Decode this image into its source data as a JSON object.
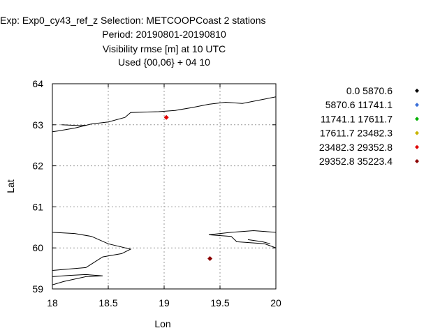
{
  "chart_data": {
    "type": "scatter",
    "title_lines": [
      "Exp: Exp0_cy43_ref_z   Selection: METCOOPCoast       2 stations",
      "Period: 20190801-20190810",
      "Visibility rmse [m] at  10 UTC",
      "Used {00,06} + 04 10"
    ],
    "xlabel": "Lon",
    "ylabel": "Lat",
    "xlim": [
      18,
      20
    ],
    "ylim": [
      59,
      64
    ],
    "x_ticks": [
      18,
      18.5,
      19,
      19.5,
      20
    ],
    "x_tick_labels": [
      "18",
      "18.5",
      "19",
      "19.5",
      "20"
    ],
    "y_ticks": [
      59,
      60,
      61,
      62,
      63,
      64
    ],
    "y_tick_labels": [
      "59",
      "60",
      "61",
      "62",
      "63",
      "64"
    ],
    "grid": true,
    "legend_position": "right",
    "legend": [
      {
        "label": "0.0 5870.6",
        "color": "#000000"
      },
      {
        "label": "5870.6 11741.1",
        "color": "#3a6fd8"
      },
      {
        "label": "11741.1 17611.7",
        "color": "#00b000"
      },
      {
        "label": "17611.7 23482.3",
        "color": "#c8b400"
      },
      {
        "label": "23482.3 29352.8",
        "color": "#e00000"
      },
      {
        "label": "29352.8 35223.4",
        "color": "#8b0000"
      }
    ],
    "points": [
      {
        "lon": 19.02,
        "lat": 63.18,
        "class": 4
      },
      {
        "lon": 19.41,
        "lat": 59.74,
        "class": 5
      }
    ],
    "coastlines": [
      [
        [
          18.0,
          62.83
        ],
        [
          18.05,
          62.85
        ],
        [
          18.2,
          62.92
        ],
        [
          18.35,
          63.02
        ],
        [
          18.5,
          63.07
        ],
        [
          18.65,
          63.18
        ],
        [
          18.7,
          63.3
        ],
        [
          18.95,
          63.32
        ],
        [
          19.1,
          63.35
        ],
        [
          19.25,
          63.42
        ],
        [
          19.4,
          63.5
        ],
        [
          19.55,
          63.55
        ],
        [
          19.7,
          63.52
        ],
        [
          19.85,
          63.6
        ],
        [
          20.0,
          63.68
        ]
      ],
      [
        [
          18.08,
          63.0
        ],
        [
          18.25,
          62.98
        ],
        [
          18.3,
          62.99
        ]
      ],
      [
        [
          18.0,
          60.38
        ],
        [
          18.2,
          60.35
        ],
        [
          18.35,
          60.28
        ],
        [
          18.5,
          60.1
        ],
        [
          18.7,
          59.97
        ],
        [
          18.62,
          59.86
        ],
        [
          18.45,
          59.78
        ],
        [
          18.3,
          59.52
        ],
        [
          18.0,
          59.45
        ]
      ],
      [
        [
          18.0,
          59.1
        ],
        [
          18.1,
          59.18
        ],
        [
          18.3,
          59.3
        ],
        [
          18.45,
          59.32
        ],
        [
          18.3,
          59.35
        ],
        [
          18.15,
          59.33
        ],
        [
          18.0,
          59.3
        ]
      ],
      [
        [
          20.0,
          60.38
        ],
        [
          19.8,
          60.42
        ],
        [
          19.6,
          60.38
        ],
        [
          19.4,
          60.32
        ],
        [
          19.6,
          60.28
        ],
        [
          19.65,
          60.15
        ],
        [
          19.9,
          60.1
        ],
        [
          20.0,
          60.0
        ]
      ],
      [
        [
          19.75,
          60.2
        ],
        [
          19.88,
          60.15
        ],
        [
          19.95,
          60.1
        ]
      ]
    ]
  }
}
